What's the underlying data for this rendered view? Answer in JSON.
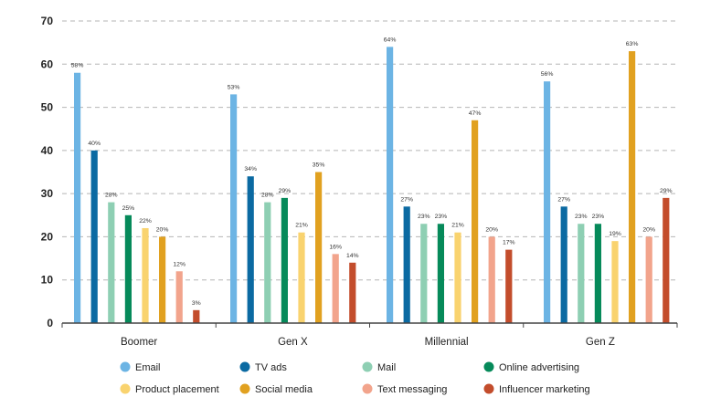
{
  "chart_data": {
    "type": "bar",
    "title": "",
    "xlabel": "",
    "ylabel": "",
    "ylim": [
      0,
      70
    ],
    "yticks": [
      0,
      10,
      20,
      30,
      40,
      50,
      60,
      70
    ],
    "grid": true,
    "legend_position": "bottom",
    "categories": [
      "Boomer",
      "Gen X",
      "Millennial",
      "Gen Z"
    ],
    "series": [
      {
        "name": "Email",
        "color": "#6CB4E4",
        "values": [
          58,
          53,
          64,
          56
        ],
        "labels": [
          "58%",
          "53%",
          "64%",
          "56%"
        ]
      },
      {
        "name": "TV ads",
        "color": "#0B6AA2",
        "values": [
          40,
          34,
          27,
          27
        ],
        "labels": [
          "40%",
          "34%",
          "27%",
          "27%"
        ]
      },
      {
        "name": "Mail",
        "color": "#8ECFB3",
        "values": [
          28,
          28,
          23,
          23
        ],
        "labels": [
          "28%",
          "28%",
          "23%",
          "23%"
        ]
      },
      {
        "name": "Online advertising",
        "color": "#068A5A",
        "values": [
          25,
          29,
          23,
          23
        ],
        "labels": [
          "25%",
          "29%",
          "23%",
          "23%"
        ]
      },
      {
        "name": "Product placement",
        "color": "#F9D36F",
        "values": [
          22,
          21,
          21,
          19
        ],
        "labels": [
          "22%",
          "21%",
          "21%",
          "19%"
        ]
      },
      {
        "name": "Social media",
        "color": "#E1A120",
        "values": [
          20,
          35,
          47,
          63
        ],
        "labels": [
          "20%",
          "35%",
          "47%",
          "63%"
        ]
      },
      {
        "name": "Text messaging",
        "color": "#F2A48C",
        "values": [
          12,
          16,
          20,
          20
        ],
        "labels": [
          "12%",
          "16%",
          "20%",
          "20%"
        ]
      },
      {
        "name": "Influencer marketing",
        "color": "#C34D2C",
        "values": [
          3,
          14,
          17,
          29
        ],
        "labels": [
          "3%",
          "14%",
          "17%",
          "29%"
        ]
      }
    ]
  }
}
